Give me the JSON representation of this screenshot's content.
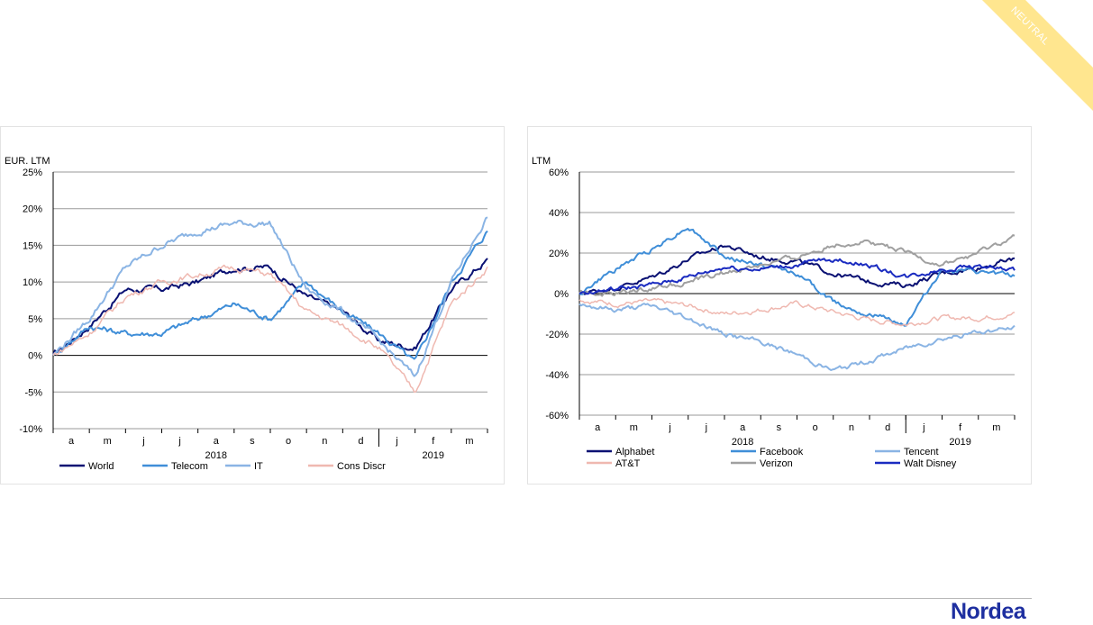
{
  "ribbon": {
    "label": "NEUTRAL",
    "color": "#ffe68f"
  },
  "footer": {
    "logo": "Nordea",
    "logo_color": "#1e2fa0"
  },
  "chart_data": [
    {
      "type": "line",
      "ylabel": "EUR. LTM",
      "ylim": [
        -10,
        25
      ],
      "yticks": [
        -10,
        -5,
        0,
        5,
        10,
        15,
        20,
        25
      ],
      "ytick_labels": [
        "-10%",
        "-5%",
        "0%",
        "5%",
        "10%",
        "15%",
        "20%",
        "25%"
      ],
      "month_labels": [
        "a",
        "m",
        "j",
        "j",
        "a",
        "s",
        "o",
        "n",
        "d",
        "j",
        "f",
        "m"
      ],
      "year_labels": [
        "2018",
        "2019"
      ],
      "grid": true,
      "legend": "bottom",
      "months": [
        "mar",
        "apr",
        "may",
        "jun",
        "jul",
        "aug",
        "sep",
        "oct",
        "nov",
        "dec",
        "jan",
        "feb",
        "mar"
      ],
      "series": [
        {
          "name": "World",
          "color": "#0a1173",
          "width": 2,
          "values": [
            0,
            4,
            9,
            9,
            10,
            12,
            12,
            8,
            6,
            2,
            1,
            9,
            13
          ]
        },
        {
          "name": "Telecom",
          "color": "#3f8ed8",
          "width": 2,
          "values": [
            0,
            4,
            3,
            3,
            5,
            7,
            5,
            10,
            6,
            3,
            -1,
            10,
            17
          ]
        },
        {
          "name": "IT",
          "color": "#8ab4e4",
          "width": 2,
          "values": [
            0,
            5,
            12,
            15,
            17,
            18,
            18,
            9,
            6,
            2,
            -3,
            10,
            19
          ]
        },
        {
          "name": "Cons Discr",
          "color": "#efb8b0",
          "width": 1.5,
          "values": [
            0,
            3,
            8,
            10,
            11,
            12,
            11,
            6,
            4,
            1,
            -5,
            7,
            12
          ]
        }
      ]
    },
    {
      "type": "line",
      "ylabel": "LTM",
      "ylim": [
        -60,
        60
      ],
      "yticks": [
        -60,
        -40,
        -20,
        0,
        20,
        40,
        60
      ],
      "ytick_labels": [
        "-60%",
        "-40%",
        "-20%",
        "0%",
        "20%",
        "40%",
        "60%"
      ],
      "month_labels": [
        "a",
        "m",
        "j",
        "j",
        "a",
        "s",
        "o",
        "n",
        "d",
        "j",
        "f",
        "m"
      ],
      "year_labels": [
        "2018",
        "2019"
      ],
      "grid": true,
      "legend": "bottom",
      "months": [
        "mar",
        "apr",
        "may",
        "jun",
        "jul",
        "aug",
        "sep",
        "oct",
        "nov",
        "dec",
        "jan",
        "feb",
        "mar"
      ],
      "series": [
        {
          "name": "Alphabet",
          "color": "#0a1173",
          "width": 2,
          "values": [
            0,
            3,
            8,
            17,
            24,
            18,
            16,
            10,
            6,
            4,
            10,
            13,
            17
          ]
        },
        {
          "name": "Facebook",
          "color": "#3f8ed8",
          "width": 2,
          "values": [
            0,
            12,
            22,
            33,
            18,
            14,
            10,
            -4,
            -10,
            -15,
            12,
            10,
            9
          ]
        },
        {
          "name": "Tencent",
          "color": "#8ab4e4",
          "width": 2,
          "values": [
            -5,
            -8,
            -6,
            -12,
            -20,
            -24,
            -30,
            -38,
            -33,
            -27,
            -22,
            -19,
            -17
          ]
        },
        {
          "name": "AT&T",
          "color": "#efb8b0",
          "width": 1.5,
          "values": [
            -3,
            -5,
            -4,
            -6,
            -10,
            -8,
            -5,
            -9,
            -13,
            -15,
            -12,
            -12,
            -10
          ]
        },
        {
          "name": "Verizon",
          "color": "#a0a0a0",
          "width": 2,
          "values": [
            0,
            0,
            3,
            6,
            10,
            14,
            18,
            24,
            26,
            20,
            14,
            20,
            28
          ]
        },
        {
          "name": "Walt Disney",
          "color": "#1a2bc0",
          "width": 2,
          "values": [
            0,
            2,
            4,
            8,
            13,
            12,
            14,
            17,
            14,
            8,
            12,
            14,
            11
          ]
        }
      ]
    }
  ]
}
